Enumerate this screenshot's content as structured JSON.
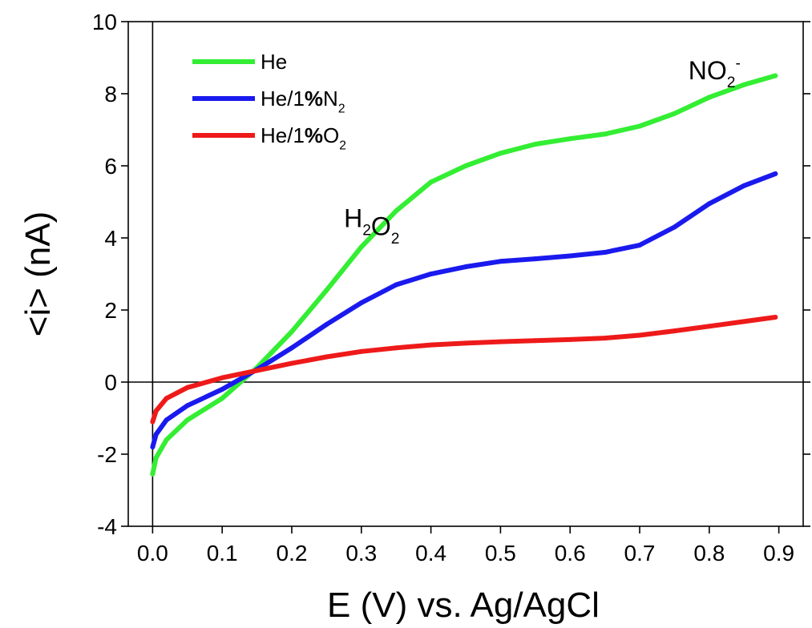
{
  "chart_data": {
    "type": "line",
    "xlabel": "E (V) vs. Ag/AgCl",
    "ylabel": "<i> (nA)",
    "xlim": [
      -0.035,
      0.935
    ],
    "ylim": [
      -4,
      10
    ],
    "xticks": [
      "0.0",
      "0.1",
      "0.2",
      "0.3",
      "0.4",
      "0.5",
      "0.6",
      "0.7",
      "0.8",
      "0.9"
    ],
    "yticks": [
      "-4",
      "-2",
      "0",
      "2",
      "4",
      "6",
      "8",
      "10"
    ],
    "legend_position": "top-left",
    "series": [
      {
        "name": "He",
        "name_parts": [
          [
            "He",
            "normal"
          ]
        ],
        "color": "#33ee33",
        "x": [
          0.0,
          0.005,
          0.02,
          0.05,
          0.1,
          0.15,
          0.2,
          0.25,
          0.3,
          0.35,
          0.4,
          0.45,
          0.5,
          0.55,
          0.6,
          0.65,
          0.7,
          0.75,
          0.8,
          0.85,
          0.895
        ],
        "y": [
          -2.55,
          -2.1,
          -1.6,
          -1.05,
          -0.45,
          0.4,
          1.4,
          2.55,
          3.75,
          4.75,
          5.55,
          6.0,
          6.35,
          6.6,
          6.75,
          6.88,
          7.1,
          7.45,
          7.9,
          8.25,
          8.5
        ]
      },
      {
        "name": "He/1%N2",
        "name_parts": [
          [
            "He/1",
            "normal"
          ],
          [
            "%",
            "bold"
          ],
          [
            "N",
            "normal"
          ],
          [
            "2",
            "sub"
          ]
        ],
        "color": "#1a1aee",
        "x": [
          0.0,
          0.005,
          0.02,
          0.05,
          0.1,
          0.15,
          0.2,
          0.25,
          0.3,
          0.35,
          0.4,
          0.45,
          0.5,
          0.55,
          0.6,
          0.65,
          0.7,
          0.75,
          0.8,
          0.85,
          0.895
        ],
        "y": [
          -1.8,
          -1.45,
          -1.05,
          -0.65,
          -0.2,
          0.35,
          0.95,
          1.6,
          2.2,
          2.7,
          3.0,
          3.2,
          3.35,
          3.42,
          3.5,
          3.6,
          3.8,
          4.3,
          4.95,
          5.45,
          5.78
        ]
      },
      {
        "name": "He/1%O2",
        "name_parts": [
          [
            "He/1",
            "normal"
          ],
          [
            "%",
            "bold"
          ],
          [
            "O",
            "normal"
          ],
          [
            "2",
            "sub"
          ]
        ],
        "color": "#ee1a1a",
        "x": [
          0.0,
          0.005,
          0.02,
          0.05,
          0.1,
          0.15,
          0.2,
          0.25,
          0.3,
          0.35,
          0.4,
          0.45,
          0.5,
          0.55,
          0.6,
          0.65,
          0.7,
          0.75,
          0.8,
          0.85,
          0.895
        ],
        "y": [
          -1.1,
          -0.8,
          -0.45,
          -0.15,
          0.12,
          0.32,
          0.52,
          0.7,
          0.85,
          0.95,
          1.03,
          1.08,
          1.12,
          1.15,
          1.18,
          1.22,
          1.3,
          1.42,
          1.55,
          1.68,
          1.8
        ]
      }
    ],
    "annotations": [
      {
        "parts": [
          [
            "H",
            "normal"
          ],
          [
            "2",
            "sub"
          ],
          [
            "O",
            "normal"
          ],
          [
            "2",
            "sub"
          ]
        ],
        "x": 0.275,
        "y": 4.3
      },
      {
        "parts": [
          [
            "NO",
            "normal"
          ],
          [
            "2",
            "sub"
          ],
          [
            "-",
            "sup"
          ]
        ],
        "x": 0.77,
        "y": 8.4
      }
    ]
  }
}
